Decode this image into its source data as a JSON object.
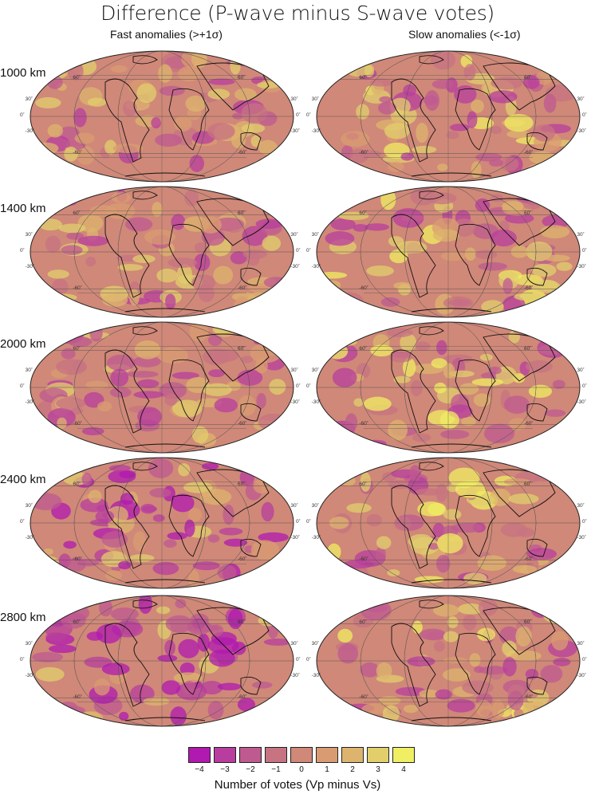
{
  "title": "Difference (P-wave minus S-wave votes)",
  "columns": [
    "Fast anomalies (>+1σ)",
    "Slow anomalies (<-1σ)"
  ],
  "rows": [
    "1000 km",
    "1400 km",
    "2000 km",
    "2400 km",
    "2800 km"
  ],
  "lat_labels": [
    "60˚",
    "30˚",
    "0˚",
    "-30˚",
    "-60˚"
  ],
  "legend": {
    "labels": [
      "−4",
      "−3",
      "−2",
      "−1",
      "0",
      "1",
      "2",
      "3",
      "4"
    ],
    "colors": [
      "#b01ab0",
      "#b83d9e",
      "#bf5a90",
      "#c77382",
      "#d08878",
      "#d99c72",
      "#ddb46e",
      "#e2cf6c",
      "#f0ee62"
    ],
    "title": "Number of votes (Vp minus Vs)"
  },
  "chart_data": {
    "type": "heatmap",
    "title": "Difference (P-wave minus S-wave votes)",
    "projection": "Mollweide global maps",
    "panels_columns": [
      "Fast anomalies (>+1σ)",
      "Slow anomalies (<-1σ)"
    ],
    "panels_rows": [
      "1000 km",
      "1400 km",
      "2000 km",
      "2400 km",
      "2800 km"
    ],
    "colorbar": {
      "values": [
        -4,
        -3,
        -2,
        -1,
        0,
        1,
        2,
        3,
        4
      ],
      "label": "Number of votes (Vp minus Vs)"
    },
    "latitude_ticks": [
      60,
      30,
      0,
      -30,
      -60
    ],
    "notes": "Background mostly 0 (salmon); fast-anomaly maps show increasingly negative (magenta) votes with depth, strongest at 2800 km beneath Pacific rim, Antarctica and Asia; slow-anomaly maps show mixed positive (yellow) patches, e.g. near New Guinea at 2000 km."
  }
}
